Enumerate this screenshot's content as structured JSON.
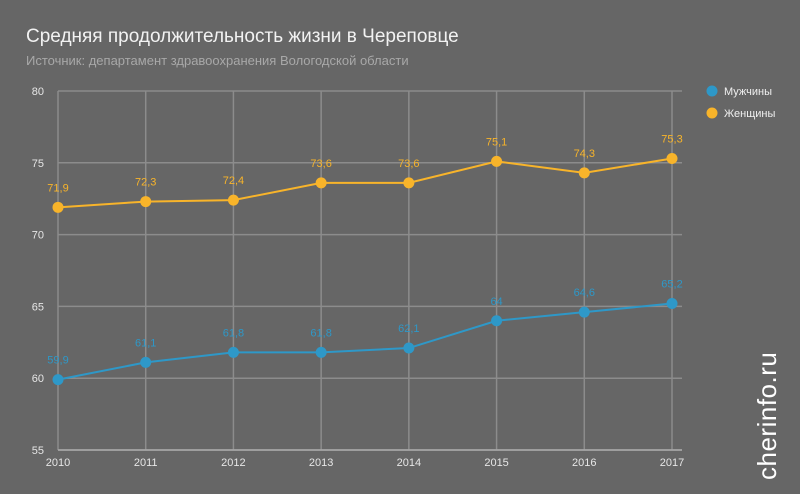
{
  "chart_data": {
    "type": "line",
    "title": "Средняя продолжительность жизни в Череповце",
    "subtitle": "Источник: департамент здравоохранения Вологодской области",
    "x": [
      "2010",
      "2011",
      "2012",
      "2013",
      "2014",
      "2015",
      "2016",
      "2017"
    ],
    "ylim": [
      55,
      80
    ],
    "yticks": [
      55,
      60,
      65,
      70,
      75,
      80
    ],
    "grid": true,
    "legend_position": "top-right",
    "series": [
      {
        "name": "Мужчины",
        "color": "#2e98c8",
        "values": [
          59.9,
          61.1,
          61.8,
          61.8,
          62.1,
          64,
          64.6,
          65.2
        ],
        "labels": [
          "59,9",
          "61,1",
          "61,8",
          "61,8",
          "62,1",
          "64",
          "64,6",
          "65,2"
        ]
      },
      {
        "name": "Женщины",
        "color": "#f8b42a",
        "values": [
          71.9,
          72.3,
          72.4,
          73.6,
          73.6,
          75.1,
          74.3,
          75.3
        ],
        "labels": [
          "71,9",
          "72,3",
          "72,4",
          "73,6",
          "73,6",
          "75,1",
          "74,3",
          "75,3"
        ]
      }
    ]
  },
  "watermark": "cherinfo.ru"
}
